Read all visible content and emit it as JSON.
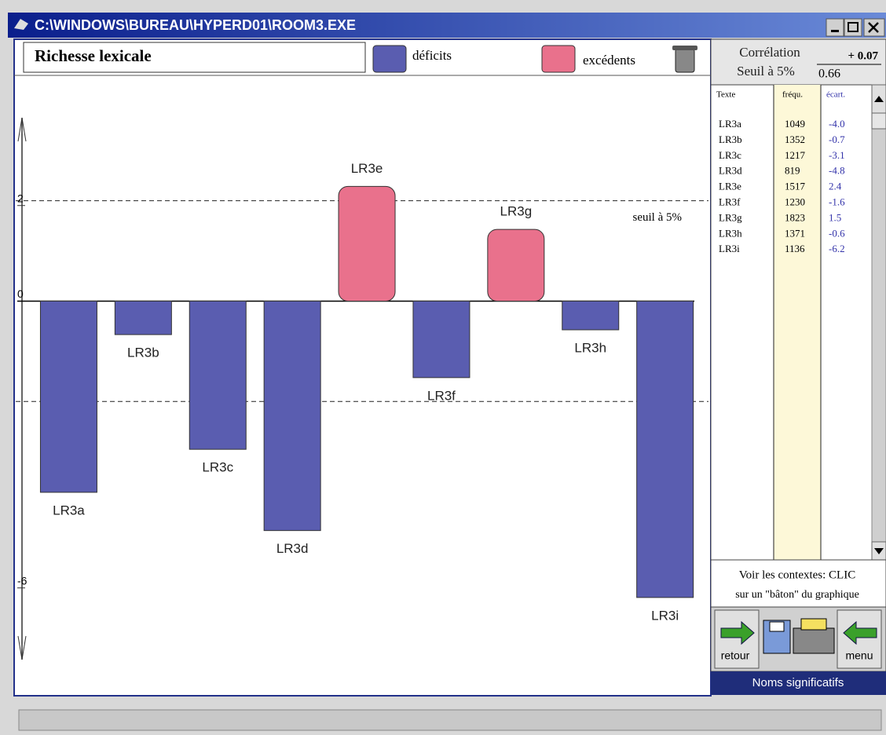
{
  "window": {
    "title": "C:\\WINDOWS\\BUREAU\\HYPERD01\\ROOM3.EXE"
  },
  "chart_data": {
    "type": "bar",
    "title": "Richesse lexicale",
    "categories": [
      "LR3a",
      "LR3b",
      "LR3c",
      "LR3d",
      "LR3e",
      "LR3f",
      "LR3g",
      "LR3h",
      "LR3i"
    ],
    "series": [
      {
        "name": "déficits",
        "color": "#5a5db0",
        "values": [
          -4.0,
          -0.7,
          -3.1,
          -4.8,
          null,
          -1.6,
          null,
          -0.6,
          -6.2
        ]
      },
      {
        "name": "excédents",
        "color": "#e9718c",
        "values": [
          null,
          null,
          null,
          null,
          2.4,
          null,
          1.5,
          null,
          null
        ]
      }
    ],
    "ylim": [
      -7.5,
      4
    ],
    "yticks": [
      2,
      0,
      -6
    ],
    "threshold": {
      "label": "seuil à 5%",
      "values": [
        2.1,
        -2.1
      ]
    }
  },
  "stats": {
    "correlation_label": "Corrélation",
    "correlation": "+ 0.07",
    "threshold_label": "Seuil à 5%",
    "threshold": "0.66"
  },
  "table": {
    "headers": [
      "Texte",
      "fréqu.",
      "écart."
    ],
    "rows": [
      [
        "LR3a",
        "1049",
        "-4.0"
      ],
      [
        "LR3b",
        "1352",
        "-0.7"
      ],
      [
        "LR3c",
        "1217",
        "-3.1"
      ],
      [
        "LR3d",
        "819",
        "-4.8"
      ],
      [
        "LR3e",
        "1517",
        "2.4"
      ],
      [
        "LR3f",
        "1230",
        "-1.6"
      ],
      [
        "LR3g",
        "1823",
        "1.5"
      ],
      [
        "LR3h",
        "1371",
        "-0.6"
      ],
      [
        "LR3i",
        "1136",
        "-6.2"
      ]
    ]
  },
  "help": [
    "Voir les contextes: CLIC",
    "sur un \"bâton\" du graphique"
  ],
  "buttons": {
    "back": "retour",
    "menu": "menu"
  },
  "status": "Noms significatifs"
}
